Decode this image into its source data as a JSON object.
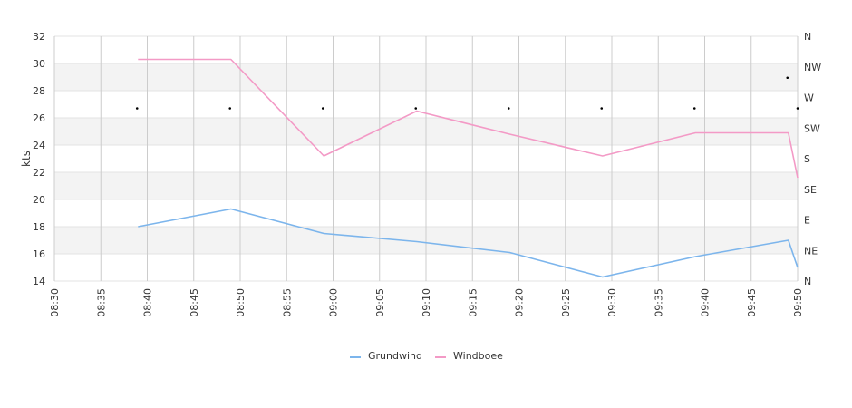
{
  "chart_data": {
    "type": "line",
    "title": "",
    "ylabel": "kts",
    "xlabel": "",
    "ylim": [
      14,
      32
    ],
    "yticks": [
      14,
      16,
      18,
      20,
      22,
      24,
      26,
      28,
      30,
      32
    ],
    "xlim": [
      "08:30",
      "09:50"
    ],
    "xticks": [
      "08:30",
      "08:35",
      "08:40",
      "08:45",
      "08:50",
      "08:55",
      "09:00",
      "09:05",
      "09:10",
      "09:15",
      "09:20",
      "09:25",
      "09:30",
      "09:35",
      "09:40",
      "09:45",
      "09:50"
    ],
    "y2ticks": [
      "N",
      "NE",
      "E",
      "SE",
      "S",
      "SW",
      "W",
      "NW",
      "N"
    ],
    "grid": true,
    "legend": "bottom-center",
    "series": [
      {
        "name": "Grundwind",
        "color": "#7cb5ec",
        "points": [
          {
            "x": "08:39",
            "y": 18.0
          },
          {
            "x": "08:49",
            "y": 19.3
          },
          {
            "x": "08:59",
            "y": 17.5
          },
          {
            "x": "09:09",
            "y": 16.9
          },
          {
            "x": "09:19",
            "y": 16.1
          },
          {
            "x": "09:29",
            "y": 14.3
          },
          {
            "x": "09:39",
            "y": 15.8
          },
          {
            "x": "09:49",
            "y": 17.0
          },
          {
            "x": "09:50",
            "y": 15.0
          }
        ]
      },
      {
        "name": "Windboee",
        "color": "#f39ac6",
        "points": [
          {
            "x": "08:39",
            "y": 30.3
          },
          {
            "x": "08:49",
            "y": 30.3
          },
          {
            "x": "08:59",
            "y": 23.2
          },
          {
            "x": "09:09",
            "y": 26.5
          },
          {
            "x": "09:19",
            "y": 24.8
          },
          {
            "x": "09:29",
            "y": 23.2
          },
          {
            "x": "09:39",
            "y": 24.9
          },
          {
            "x": "09:49",
            "y": 24.9
          },
          {
            "x": "09:50",
            "y": 21.6
          }
        ]
      }
    ],
    "direction_markers": {
      "times": [
        "08:39",
        "08:49",
        "08:59",
        "09:09",
        "09:19",
        "09:29",
        "09:39",
        "09:49",
        "09:50"
      ],
      "directions": [
        "W",
        "W",
        "W",
        "W",
        "W",
        "W",
        "W",
        "NW",
        "W"
      ]
    }
  }
}
